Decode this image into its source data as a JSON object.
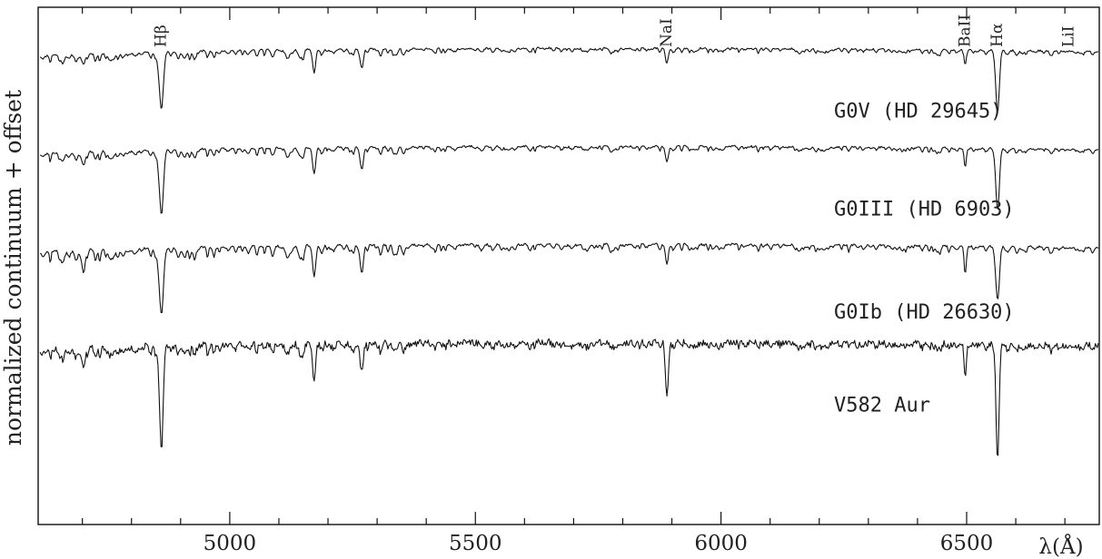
{
  "chart_data": {
    "type": "line",
    "title": "",
    "ylabel": "normalized continuum + offset",
    "xlabel": "λ(Å)",
    "xlim": [
      4610,
      6770
    ],
    "x_ticks": [
      {
        "value": 5000,
        "label": "5000"
      },
      {
        "value": 5500,
        "label": "5500"
      },
      {
        "value": 6000,
        "label": "6000"
      },
      {
        "value": 6500,
        "label": "6500"
      }
    ],
    "grid": false,
    "line_identifications": [
      {
        "label": "Hβ",
        "wavelength": 4861
      },
      {
        "label": "NaI",
        "wavelength": 5890
      },
      {
        "label": "BaII",
        "wavelength": 6497
      },
      {
        "label": "Hα",
        "wavelength": 6563
      },
      {
        "label": "LiI",
        "wavelength": 6708
      }
    ],
    "series": [
      {
        "name": "G0V (HD 29645)",
        "offset": 3,
        "label_wavelength": 6230,
        "label_level": 2.55,
        "absorption_scale": 0.8,
        "noise": 0.012,
        "seed": 11,
        "lines": [
          [
            4861,
            0.7,
            4
          ],
          [
            5890,
            0.2,
            3
          ],
          [
            6497,
            0.14,
            2
          ],
          [
            6563,
            0.82,
            3.5
          ],
          [
            5172,
            0.28,
            3
          ],
          [
            5269,
            0.25,
            3
          ],
          [
            4703,
            0.1,
            3
          ]
        ]
      },
      {
        "name": "G0III (HD 6903)",
        "offset": 2,
        "label_wavelength": 6230,
        "label_level": 1.55,
        "absorption_scale": 0.85,
        "noise": 0.012,
        "seed": 23,
        "lines": [
          [
            4861,
            0.8,
            4
          ],
          [
            5890,
            0.2,
            3
          ],
          [
            6497,
            0.2,
            2
          ],
          [
            6563,
            0.82,
            3.5
          ],
          [
            5172,
            0.32,
            3
          ],
          [
            5269,
            0.3,
            3
          ],
          [
            4703,
            0.14,
            3
          ]
        ]
      },
      {
        "name": "G0Ib (HD 26630)",
        "offset": 1,
        "label_wavelength": 6230,
        "label_level": 0.5,
        "absorption_scale": 1.15,
        "noise": 0.014,
        "seed": 37,
        "lines": [
          [
            4861,
            0.8,
            4
          ],
          [
            5890,
            0.25,
            3
          ],
          [
            6497,
            0.3,
            2
          ],
          [
            6563,
            0.7,
            3.5
          ],
          [
            5172,
            0.38,
            3
          ],
          [
            5269,
            0.38,
            3
          ],
          [
            4703,
            0.25,
            3
          ]
        ]
      },
      {
        "name": "V582 Aur",
        "offset": 0,
        "label_wavelength": 6230,
        "label_level": -0.45,
        "absorption_scale": 1.0,
        "noise": 0.045,
        "seed": 53,
        "lines": [
          [
            4861,
            1.3,
            3.5
          ],
          [
            5890,
            0.7,
            3
          ],
          [
            6497,
            0.35,
            2
          ],
          [
            6563,
            1.55,
            3
          ],
          [
            5172,
            0.45,
            3
          ],
          [
            5269,
            0.4,
            3
          ],
          [
            4703,
            0.18,
            3
          ]
        ]
      }
    ]
  }
}
